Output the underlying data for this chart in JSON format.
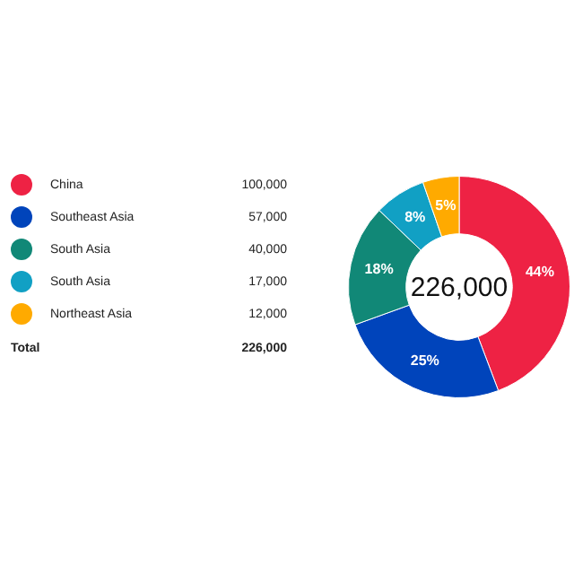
{
  "chart_data": {
    "type": "donut",
    "categories": [
      "China",
      "Southeast Asia",
      "South Asia",
      "South Asia",
      "Northeast Asia"
    ],
    "values": [
      100000,
      57000,
      40000,
      17000,
      12000
    ],
    "colors": [
      "#ee2244",
      "#0044bb",
      "#118877",
      "#11a0c4",
      "#ffaa00"
    ],
    "value_labels": [
      "100,000",
      "57,000",
      "40,000",
      "17,000",
      "12,000"
    ],
    "legend": "left",
    "annotations": [
      "226,000",
      "Total",
      {
        "text": "44%",
        "x": "China"
      },
      {
        "text": "25%",
        "x": "Southeast Asia"
      },
      {
        "text": "18%",
        "x": "South Asia"
      },
      {
        "text": "8%",
        "x": "South Asia"
      },
      {
        "text": "5%",
        "x": "Northeast Asia"
      }
    ],
    "totals": [
      "226,000"
    ]
  }
}
